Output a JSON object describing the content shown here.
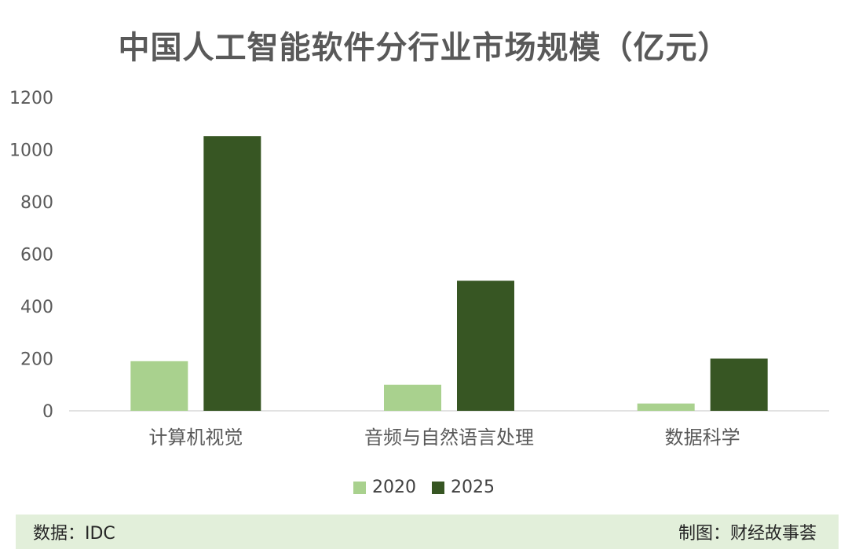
{
  "title": "中国人工智能软件分行业市场规模（亿元）",
  "footer": {
    "source": "数据：IDC",
    "credit": "制图：财经故事荟"
  },
  "colors": {
    "series_2020": "#a9d18e",
    "series_2025": "#375623",
    "axis": "#d9d9d9",
    "footer_bg": "#e2efda"
  },
  "chart_data": {
    "type": "bar",
    "title": "中国人工智能软件分行业市场规模（亿元）",
    "categories": [
      "计算机视觉",
      "音频与自然语言处理",
      "数据科学"
    ],
    "series": [
      {
        "name": "2020",
        "values": [
          190,
          100,
          28
        ]
      },
      {
        "name": "2025",
        "values": [
          1052,
          498,
          200
        ]
      }
    ],
    "ylim": [
      0,
      1200
    ],
    "yticks": [
      0,
      200,
      400,
      600,
      800,
      1000,
      1200
    ],
    "grid": false,
    "legend": "bottom"
  }
}
